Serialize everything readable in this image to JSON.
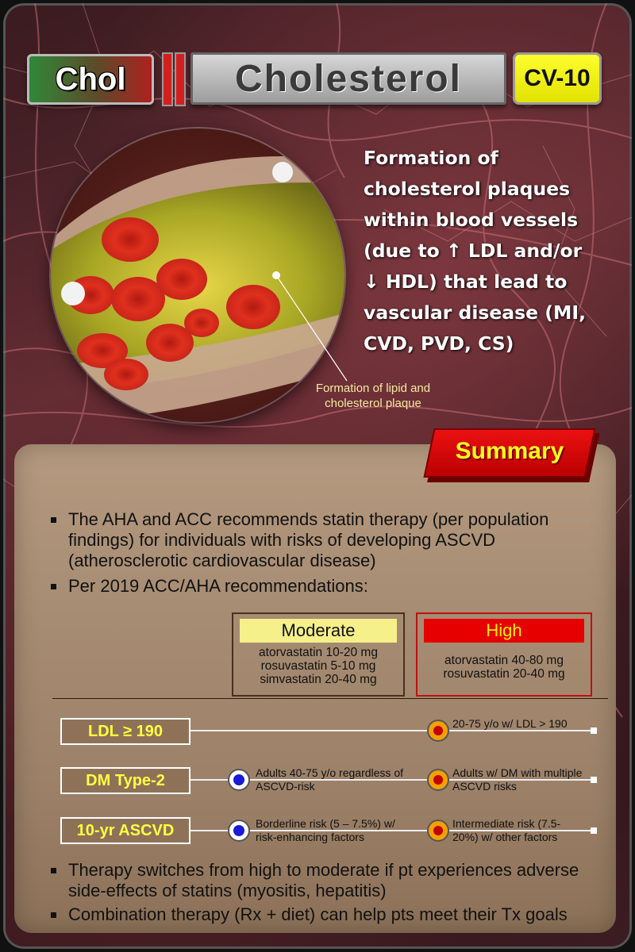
{
  "header": {
    "abbr": "Chol",
    "name": "Cholesterol",
    "code": "CV-10"
  },
  "definition": "Formation of cholesterol plaques within blood vessels (due to ↑ LDL and/or ↓ HDL) that lead to vascular disease (MI, CVD, PVD, CS)",
  "image_caption": "Formation of lipid and cholesterol plaque",
  "summary": {
    "label": "Summary",
    "bullets": [
      "The AHA and ACC recommends statin therapy (per population findings) for individuals with risks of developing ASCVD (atherosclerotic cardiovascular disease)",
      "Per 2019 ACC/AHA recommendations:"
    ],
    "intensity": {
      "moderate": {
        "title": "Moderate",
        "drugs": [
          "atorvastatin 10-20 mg",
          "rosuvastatin 5-10 mg",
          "simvastatin 20-40 mg"
        ]
      },
      "high": {
        "title": "High",
        "drugs": [
          "atorvastatin 40-80 mg",
          "rosuvastatin 20-40 mg"
        ]
      }
    },
    "criteria": [
      {
        "label": "LDL ≥ 190",
        "moderate_note": "",
        "high_note": "20-75 y/o w/ LDL > 190"
      },
      {
        "label": "DM Type-2",
        "moderate_note": "Adults 40-75 y/o regardless of ASCVD-risk",
        "high_note": "Adults w/ DM with multiple ASCVD risks"
      },
      {
        "label": "10-yr ASCVD",
        "moderate_note": "Borderline risk (5 – 7.5%) w/ risk-enhancing factors",
        "high_note": "Intermediate risk (7.5-20%) w/ other factors"
      }
    ],
    "footer_bullets": [
      "Therapy switches from high to moderate if pt experiences adverse side-effects of statins (myositis, hepatitis)",
      "Combination therapy (Rx + diet) can help pts meet their Tx goals"
    ]
  },
  "colors": {
    "moderate_marker": "#1a1ad6",
    "high_marker": "#c20000",
    "criteria_label_text": "#ffff40",
    "summary_badge": "#e60000"
  }
}
